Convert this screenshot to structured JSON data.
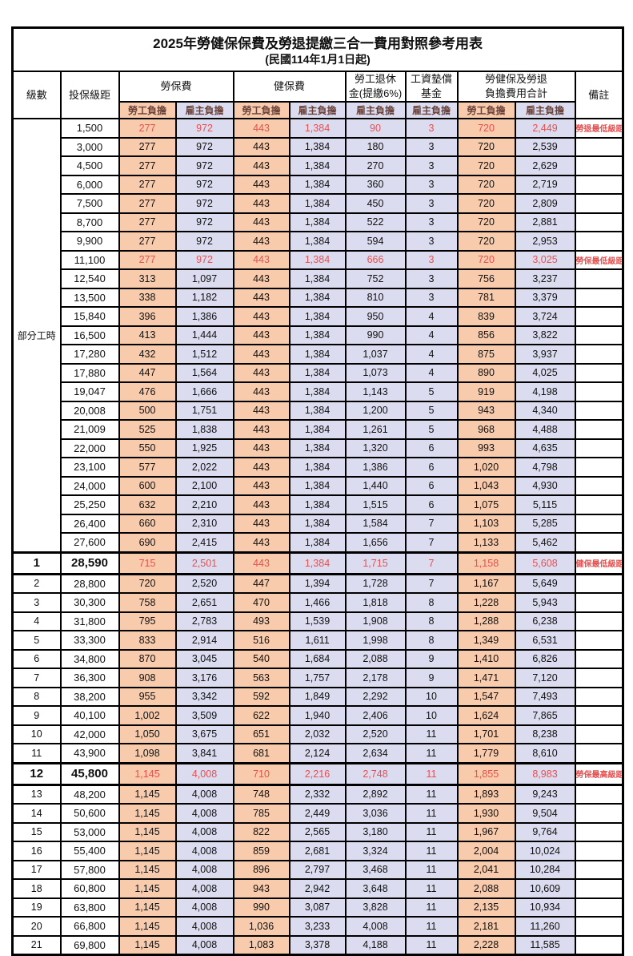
{
  "title": "2025年勞健保保費及勞退提繳三合一費用對照參考用表",
  "subtitle": "(民國114年1月1日起)",
  "header": {
    "level": "級數",
    "salary_bracket": "投保級距",
    "labor_insurance": "勞保費",
    "health_insurance": "健保費",
    "pension_line1": "勞工退休",
    "pension_line2": "金(提繳6%)",
    "wage_fund_line1": "工資墊償",
    "wage_fund_line2": "基金",
    "total_line1": "勞健保及勞退",
    "total_line2": "負擔費用合計",
    "remark": "備註",
    "employee_label": "勞工負擔",
    "employer_label": "雇主負擔"
  },
  "part_time_label": "部分工時",
  "colors": {
    "employee_bg": "#F8CBAD",
    "employer_bg": "#DBDCF0",
    "highlight_text": "#E85050",
    "subheader_text": "#6B4239"
  },
  "rows": [
    {
      "lv": "",
      "s": "1,500",
      "v": [
        "277",
        "972",
        "443",
        "1,384",
        "90",
        "3",
        "720",
        "2,449"
      ],
      "r": "勞退最低級距",
      "hl": true,
      "big": false
    },
    {
      "lv": "",
      "s": "3,000",
      "v": [
        "277",
        "972",
        "443",
        "1,384",
        "180",
        "3",
        "720",
        "2,539"
      ],
      "r": "",
      "hl": false,
      "big": false
    },
    {
      "lv": "",
      "s": "4,500",
      "v": [
        "277",
        "972",
        "443",
        "1,384",
        "270",
        "3",
        "720",
        "2,629"
      ],
      "r": "",
      "hl": false,
      "big": false
    },
    {
      "lv": "",
      "s": "6,000",
      "v": [
        "277",
        "972",
        "443",
        "1,384",
        "360",
        "3",
        "720",
        "2,719"
      ],
      "r": "",
      "hl": false,
      "big": false
    },
    {
      "lv": "",
      "s": "7,500",
      "v": [
        "277",
        "972",
        "443",
        "1,384",
        "450",
        "3",
        "720",
        "2,809"
      ],
      "r": "",
      "hl": false,
      "big": false
    },
    {
      "lv": "",
      "s": "8,700",
      "v": [
        "277",
        "972",
        "443",
        "1,384",
        "522",
        "3",
        "720",
        "2,881"
      ],
      "r": "",
      "hl": false,
      "big": false
    },
    {
      "lv": "",
      "s": "9,900",
      "v": [
        "277",
        "972",
        "443",
        "1,384",
        "594",
        "3",
        "720",
        "2,953"
      ],
      "r": "",
      "hl": false,
      "big": false
    },
    {
      "lv": "",
      "s": "11,100",
      "v": [
        "277",
        "972",
        "443",
        "1,384",
        "666",
        "3",
        "720",
        "3,025"
      ],
      "r": "勞保最低級距",
      "hl": true,
      "big": false
    },
    {
      "lv": "",
      "s": "12,540",
      "v": [
        "313",
        "1,097",
        "443",
        "1,384",
        "752",
        "3",
        "756",
        "3,237"
      ],
      "r": "",
      "hl": false,
      "big": false
    },
    {
      "lv": "",
      "s": "13,500",
      "v": [
        "338",
        "1,182",
        "443",
        "1,384",
        "810",
        "3",
        "781",
        "3,379"
      ],
      "r": "",
      "hl": false,
      "big": false
    },
    {
      "lv": "",
      "s": "15,840",
      "v": [
        "396",
        "1,386",
        "443",
        "1,384",
        "950",
        "4",
        "839",
        "3,724"
      ],
      "r": "",
      "hl": false,
      "big": false
    },
    {
      "lv": "",
      "s": "16,500",
      "v": [
        "413",
        "1,444",
        "443",
        "1,384",
        "990",
        "4",
        "856",
        "3,822"
      ],
      "r": "",
      "hl": false,
      "big": false
    },
    {
      "lv": "",
      "s": "17,280",
      "v": [
        "432",
        "1,512",
        "443",
        "1,384",
        "1,037",
        "4",
        "875",
        "3,937"
      ],
      "r": "",
      "hl": false,
      "big": false
    },
    {
      "lv": "",
      "s": "17,880",
      "v": [
        "447",
        "1,564",
        "443",
        "1,384",
        "1,073",
        "4",
        "890",
        "4,025"
      ],
      "r": "",
      "hl": false,
      "big": false
    },
    {
      "lv": "",
      "s": "19,047",
      "v": [
        "476",
        "1,666",
        "443",
        "1,384",
        "1,143",
        "5",
        "919",
        "4,198"
      ],
      "r": "",
      "hl": false,
      "big": false
    },
    {
      "lv": "",
      "s": "20,008",
      "v": [
        "500",
        "1,751",
        "443",
        "1,384",
        "1,200",
        "5",
        "943",
        "4,340"
      ],
      "r": "",
      "hl": false,
      "big": false
    },
    {
      "lv": "",
      "s": "21,009",
      "v": [
        "525",
        "1,838",
        "443",
        "1,384",
        "1,261",
        "5",
        "968",
        "4,488"
      ],
      "r": "",
      "hl": false,
      "big": false
    },
    {
      "lv": "",
      "s": "22,000",
      "v": [
        "550",
        "1,925",
        "443",
        "1,384",
        "1,320",
        "6",
        "993",
        "4,635"
      ],
      "r": "",
      "hl": false,
      "big": false
    },
    {
      "lv": "",
      "s": "23,100",
      "v": [
        "577",
        "2,022",
        "443",
        "1,384",
        "1,386",
        "6",
        "1,020",
        "4,798"
      ],
      "r": "",
      "hl": false,
      "big": false
    },
    {
      "lv": "",
      "s": "24,000",
      "v": [
        "600",
        "2,100",
        "443",
        "1,384",
        "1,440",
        "6",
        "1,043",
        "4,930"
      ],
      "r": "",
      "hl": false,
      "big": false
    },
    {
      "lv": "",
      "s": "25,250",
      "v": [
        "632",
        "2,210",
        "443",
        "1,384",
        "1,515",
        "6",
        "1,075",
        "5,115"
      ],
      "r": "",
      "hl": false,
      "big": false
    },
    {
      "lv": "",
      "s": "26,400",
      "v": [
        "660",
        "2,310",
        "443",
        "1,384",
        "1,584",
        "7",
        "1,103",
        "5,285"
      ],
      "r": "",
      "hl": false,
      "big": false
    },
    {
      "lv": "",
      "s": "27,600",
      "v": [
        "690",
        "2,415",
        "443",
        "1,384",
        "1,656",
        "7",
        "1,133",
        "5,462"
      ],
      "r": "",
      "hl": false,
      "big": false
    },
    {
      "lv": "1",
      "s": "28,590",
      "v": [
        "715",
        "2,501",
        "443",
        "1,384",
        "1,715",
        "7",
        "1,158",
        "5,608"
      ],
      "r": "健保最低級距",
      "hl": true,
      "big": true
    },
    {
      "lv": "2",
      "s": "28,800",
      "v": [
        "720",
        "2,520",
        "447",
        "1,394",
        "1,728",
        "7",
        "1,167",
        "5,649"
      ],
      "r": "",
      "hl": false,
      "big": false
    },
    {
      "lv": "3",
      "s": "30,300",
      "v": [
        "758",
        "2,651",
        "470",
        "1,466",
        "1,818",
        "8",
        "1,228",
        "5,943"
      ],
      "r": "",
      "hl": false,
      "big": false
    },
    {
      "lv": "4",
      "s": "31,800",
      "v": [
        "795",
        "2,783",
        "493",
        "1,539",
        "1,908",
        "8",
        "1,288",
        "6,238"
      ],
      "r": "",
      "hl": false,
      "big": false
    },
    {
      "lv": "5",
      "s": "33,300",
      "v": [
        "833",
        "2,914",
        "516",
        "1,611",
        "1,998",
        "8",
        "1,349",
        "6,531"
      ],
      "r": "",
      "hl": false,
      "big": false
    },
    {
      "lv": "6",
      "s": "34,800",
      "v": [
        "870",
        "3,045",
        "540",
        "1,684",
        "2,088",
        "9",
        "1,410",
        "6,826"
      ],
      "r": "",
      "hl": false,
      "big": false
    },
    {
      "lv": "7",
      "s": "36,300",
      "v": [
        "908",
        "3,176",
        "563",
        "1,757",
        "2,178",
        "9",
        "1,471",
        "7,120"
      ],
      "r": "",
      "hl": false,
      "big": false
    },
    {
      "lv": "8",
      "s": "38,200",
      "v": [
        "955",
        "3,342",
        "592",
        "1,849",
        "2,292",
        "10",
        "1,547",
        "7,493"
      ],
      "r": "",
      "hl": false,
      "big": false
    },
    {
      "lv": "9",
      "s": "40,100",
      "v": [
        "1,002",
        "3,509",
        "622",
        "1,940",
        "2,406",
        "10",
        "1,624",
        "7,865"
      ],
      "r": "",
      "hl": false,
      "big": false
    },
    {
      "lv": "10",
      "s": "42,000",
      "v": [
        "1,050",
        "3,675",
        "651",
        "2,032",
        "2,520",
        "11",
        "1,701",
        "8,238"
      ],
      "r": "",
      "hl": false,
      "big": false
    },
    {
      "lv": "11",
      "s": "43,900",
      "v": [
        "1,098",
        "3,841",
        "681",
        "2,124",
        "2,634",
        "11",
        "1,779",
        "8,610"
      ],
      "r": "",
      "hl": false,
      "big": false
    },
    {
      "lv": "12",
      "s": "45,800",
      "v": [
        "1,145",
        "4,008",
        "710",
        "2,216",
        "2,748",
        "11",
        "1,855",
        "8,983"
      ],
      "r": "勞保最高級距",
      "hl": true,
      "big": true
    },
    {
      "lv": "13",
      "s": "48,200",
      "v": [
        "1,145",
        "4,008",
        "748",
        "2,332",
        "2,892",
        "11",
        "1,893",
        "9,243"
      ],
      "r": "",
      "hl": false,
      "big": false
    },
    {
      "lv": "14",
      "s": "50,600",
      "v": [
        "1,145",
        "4,008",
        "785",
        "2,449",
        "3,036",
        "11",
        "1,930",
        "9,504"
      ],
      "r": "",
      "hl": false,
      "big": false
    },
    {
      "lv": "15",
      "s": "53,000",
      "v": [
        "1,145",
        "4,008",
        "822",
        "2,565",
        "3,180",
        "11",
        "1,967",
        "9,764"
      ],
      "r": "",
      "hl": false,
      "big": false
    },
    {
      "lv": "16",
      "s": "55,400",
      "v": [
        "1,145",
        "4,008",
        "859",
        "2,681",
        "3,324",
        "11",
        "2,004",
        "10,024"
      ],
      "r": "",
      "hl": false,
      "big": false
    },
    {
      "lv": "17",
      "s": "57,800",
      "v": [
        "1,145",
        "4,008",
        "896",
        "2,797",
        "3,468",
        "11",
        "2,041",
        "10,284"
      ],
      "r": "",
      "hl": false,
      "big": false
    },
    {
      "lv": "18",
      "s": "60,800",
      "v": [
        "1,145",
        "4,008",
        "943",
        "2,942",
        "3,648",
        "11",
        "2,088",
        "10,609"
      ],
      "r": "",
      "hl": false,
      "big": false
    },
    {
      "lv": "19",
      "s": "63,800",
      "v": [
        "1,145",
        "4,008",
        "990",
        "3,087",
        "3,828",
        "11",
        "2,135",
        "10,934"
      ],
      "r": "",
      "hl": false,
      "big": false
    },
    {
      "lv": "20",
      "s": "66,800",
      "v": [
        "1,145",
        "4,008",
        "1,036",
        "3,233",
        "4,008",
        "11",
        "2,181",
        "11,260"
      ],
      "r": "",
      "hl": false,
      "big": false
    },
    {
      "lv": "21",
      "s": "69,800",
      "v": [
        "1,145",
        "4,008",
        "1,083",
        "3,378",
        "4,188",
        "11",
        "2,228",
        "11,585"
      ],
      "r": "",
      "hl": false,
      "big": false
    }
  ]
}
